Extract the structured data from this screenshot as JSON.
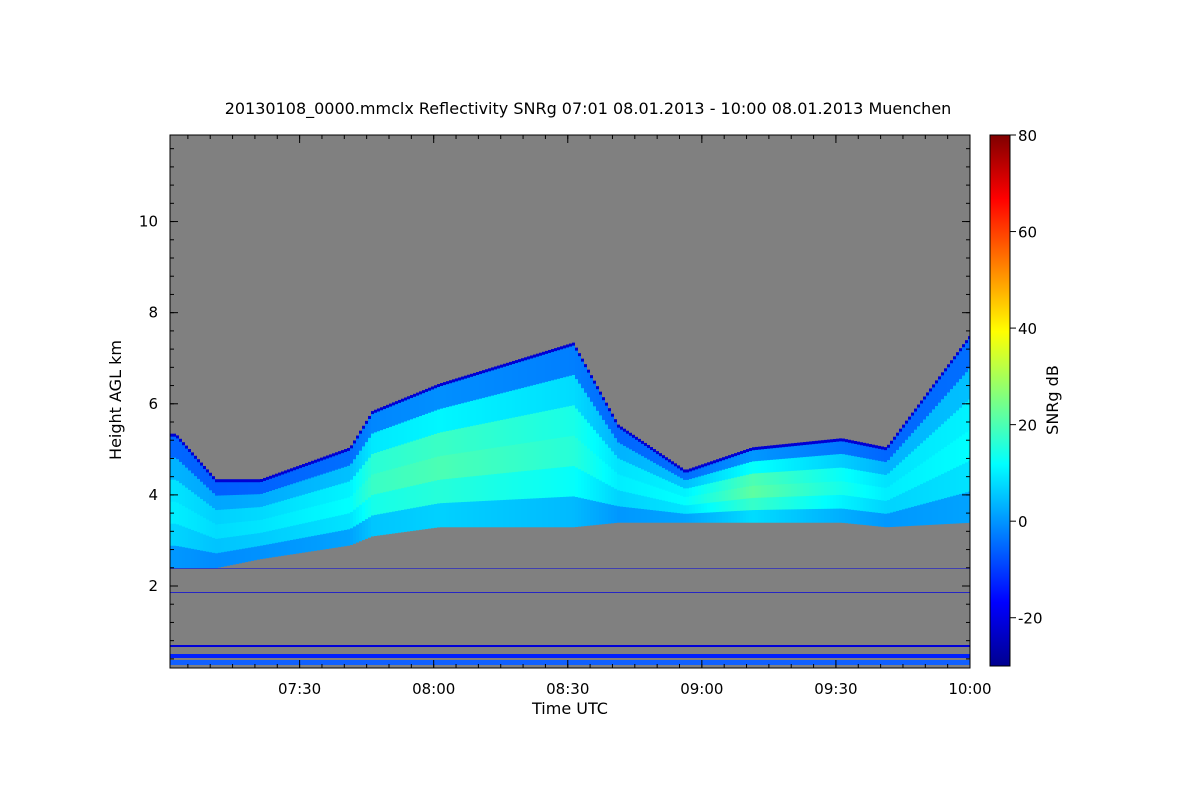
{
  "chart_data": {
    "type": "heatmap",
    "title": "20130108_0000.mmclx Reflectivity SNRg   07:01 08.01.2013 - 10:00 08.01.2013 Muenchen",
    "xlabel": "Time UTC",
    "ylabel": "Height AGL km",
    "colorbar_label": "SNRg dB",
    "x_range": [
      "07:01",
      "10:00"
    ],
    "x_ticks": [
      "07:30",
      "08:00",
      "08:30",
      "09:00",
      "09:30",
      "10:00"
    ],
    "ylim": [
      0.2,
      11.9
    ],
    "y_ticks": [
      "2",
      "4",
      "6",
      "8",
      "10"
    ],
    "colorbar_range": [
      -30,
      80
    ],
    "colorbar_ticks": [
      "-20",
      "0",
      "20",
      "40",
      "60",
      "80"
    ],
    "background_color": "#808080",
    "colormap": [
      "#00008f",
      "#0000ff",
      "#00ffff",
      "#ffff00",
      "#ff0000",
      "#800000"
    ],
    "cloud_layer": {
      "time_min": [
        1,
        10,
        20,
        40,
        45,
        60,
        90,
        100,
        115,
        130,
        150,
        160,
        179
      ],
      "base_km": [
        2.4,
        2.4,
        2.6,
        2.9,
        3.1,
        3.3,
        3.3,
        3.4,
        3.4,
        3.4,
        3.4,
        3.3,
        3.4
      ],
      "top_km": [
        5.3,
        4.3,
        4.3,
        5.0,
        5.8,
        6.4,
        7.3,
        5.5,
        4.5,
        5.0,
        5.2,
        5.0,
        7.5
      ],
      "core_snr_db": [
        10,
        8,
        9,
        12,
        18,
        20,
        16,
        10,
        12,
        22,
        14,
        10,
        12
      ]
    }
  }
}
